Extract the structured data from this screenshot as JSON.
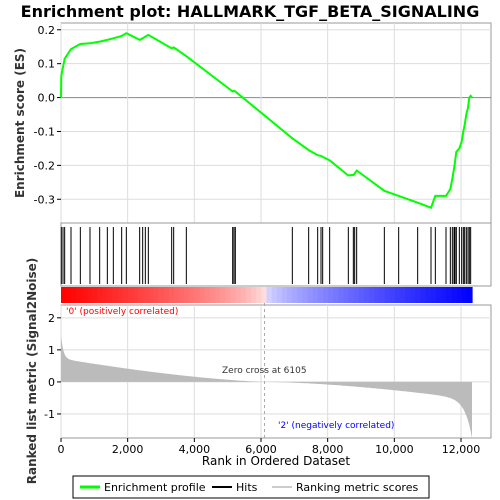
{
  "chart_data": {
    "type": "line",
    "title": "Enrichment plot: HALLMARK_TGF_BETA_SIGNALING",
    "es_panel": {
      "ylabel": "Enrichment score (ES)",
      "ylim": [
        -0.37,
        0.22
      ],
      "yticks": [
        -0.3,
        -0.2,
        -0.1,
        0.0,
        0.1,
        0.2
      ],
      "ytick_labels": [
        "-0.3",
        "-0.2",
        "-0.1",
        "0.0",
        "0.1",
        "0.2"
      ],
      "line_color": "#00ff00"
    },
    "metric_panel": {
      "ylabel": "Ranked list metric (Signal2Noise)",
      "ylim": [
        -1.75,
        2.4
      ],
      "yticks": [
        -1,
        0,
        1,
        2
      ],
      "ytick_labels": [
        "-1",
        "0",
        "1",
        "2"
      ],
      "zero_cross_label": "Zero cross at 6105",
      "zero_cross": 6105,
      "pos_label": "'0' (positively correlated)",
      "neg_label": "'2' (negatively correlated)",
      "pos_color": "#ff0000",
      "neg_color": "#0000ff"
    },
    "xlabel": "Rank in Ordered Dataset",
    "xlim": [
      0,
      12900
    ],
    "xticks": [
      0,
      2000,
      4000,
      6000,
      8000,
      10000,
      12000
    ],
    "xtick_labels": [
      "0",
      "2,000",
      "4,000",
      "6,000",
      "8,000",
      "10,000",
      "12,000"
    ],
    "n_genes": 12330,
    "hits": [
      10,
      60,
      110,
      300,
      580,
      870,
      1160,
      1390,
      1570,
      1820,
      1960,
      2360,
      2450,
      2530,
      2620,
      3320,
      3380,
      3760,
      5150,
      5190,
      5230,
      6940,
      7430,
      7700,
      7800,
      7850,
      8060,
      8620,
      8770,
      8810,
      8870,
      9700,
      10130,
      10700,
      11100,
      11230,
      11550,
      11680,
      11740,
      11790,
      11820,
      11860,
      11950,
      12020,
      12070,
      12110,
      12160,
      12210,
      12250,
      12290
    ],
    "es_profile": {
      "x": [
        0,
        10,
        60,
        110,
        300,
        580,
        870,
        1160,
        1390,
        1570,
        1820,
        1960,
        2360,
        2450,
        2530,
        2620,
        3320,
        3380,
        3760,
        5150,
        5190,
        5230,
        6940,
        7430,
        7700,
        7800,
        7850,
        8060,
        8620,
        8770,
        8810,
        8870,
        9700,
        10130,
        10700,
        11100,
        11230,
        11550,
        11680,
        11740,
        11790,
        11820,
        11860,
        11950,
        12020,
        12070,
        12110,
        12160,
        12210,
        12250,
        12290,
        12330
      ],
      "y": [
        0.0,
        0.065,
        0.09,
        0.115,
        0.143,
        0.158,
        0.16,
        0.165,
        0.17,
        0.175,
        0.182,
        0.19,
        0.17,
        0.175,
        0.18,
        0.185,
        0.145,
        0.148,
        0.122,
        0.018,
        0.02,
        0.018,
        -0.12,
        -0.155,
        -0.17,
        -0.172,
        -0.175,
        -0.185,
        -0.23,
        -0.228,
        -0.224,
        -0.215,
        -0.275,
        -0.29,
        -0.31,
        -0.325,
        -0.29,
        -0.29,
        -0.27,
        -0.24,
        -0.21,
        -0.19,
        -0.16,
        -0.15,
        -0.13,
        -0.1,
        -0.08,
        -0.05,
        -0.03,
        0.0,
        0.005,
        0.0
      ]
    },
    "legend": [
      "Enrichment profile",
      "Hits",
      "Ranking metric scores"
    ]
  }
}
